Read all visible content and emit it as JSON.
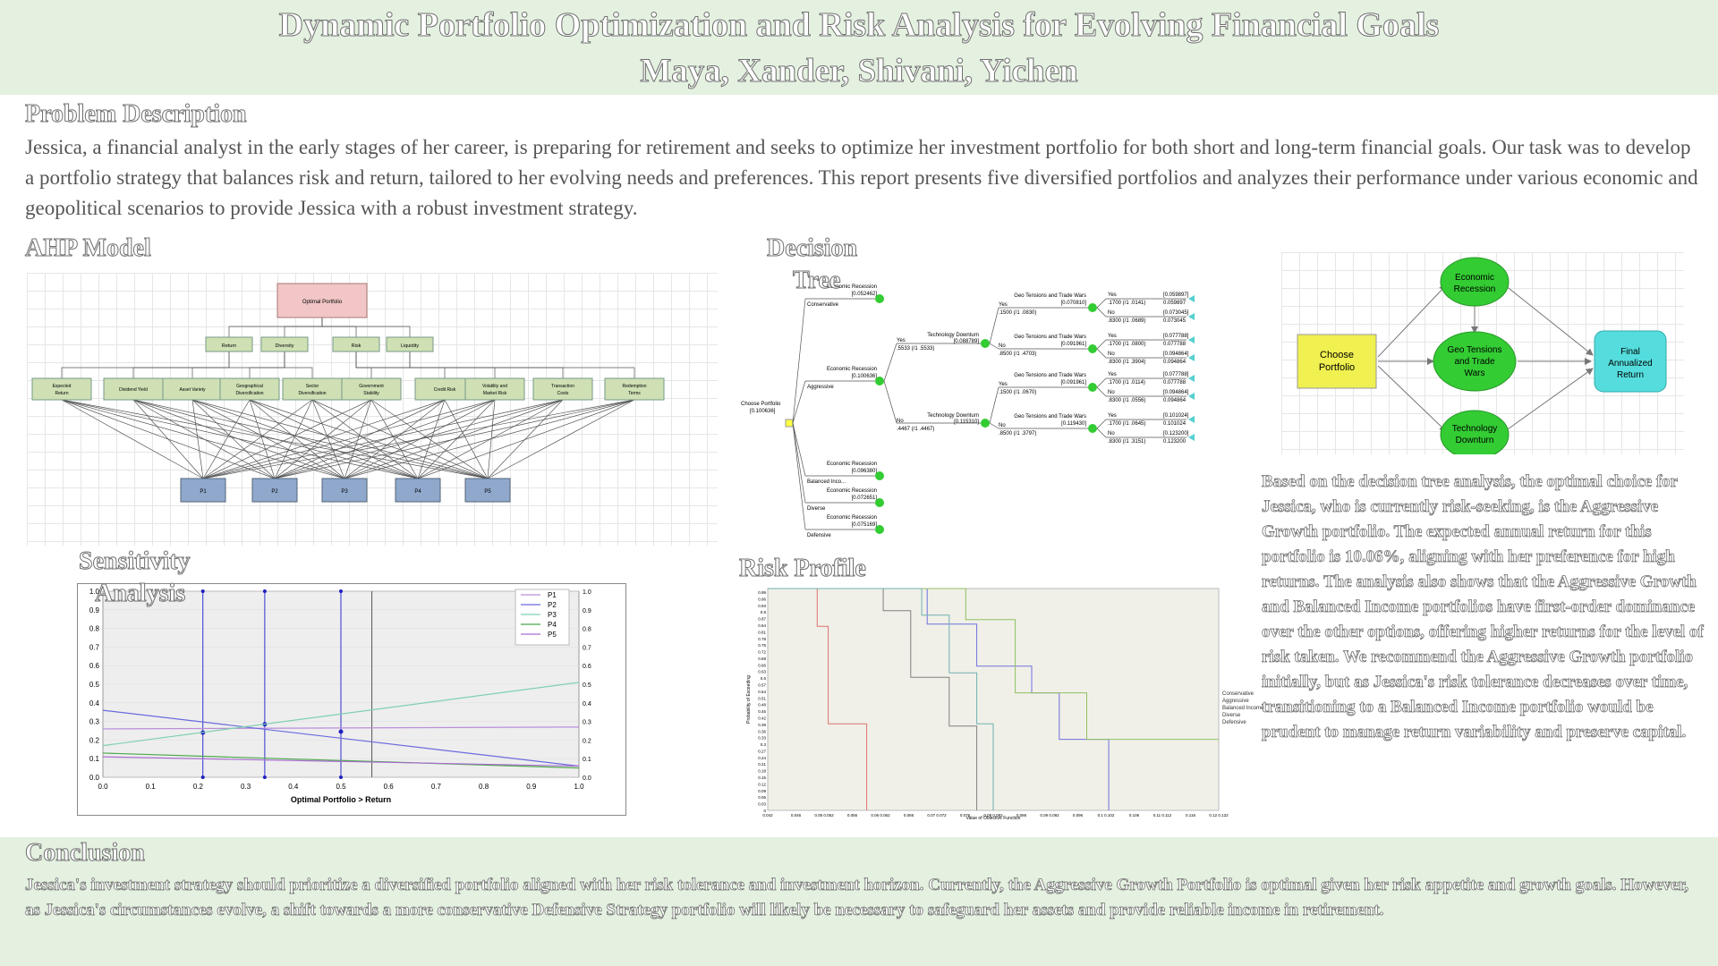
{
  "header": {
    "title": "Dynamic Portfolio Optimization and Risk Analysis for Evolving Financial Goals",
    "authors": "Maya, Xander, Shivani, Yichen"
  },
  "problem": {
    "heading": "Problem Description",
    "text": "Jessica, a financial analyst in the early stages of her career, is preparing for retirement and seeks to optimize her investment portfolio for both short and long-term financial goals. Our task was to develop a portfolio strategy that balances risk and return, tailored to her evolving needs and preferences. This report presents five diversified portfolios and analyzes their performance under various economic and geopolitical scenarios to provide Jessica with a robust investment strategy."
  },
  "ahp": {
    "heading": "AHP Model",
    "goal": "Optimal Portfolio",
    "criteria": [
      "Return",
      "Diversity",
      "Risk",
      "Liquidity"
    ],
    "subcriteria": [
      "Expected Return",
      "Dividend Yield",
      "Asset Variety",
      "Geographical Diversification",
      "Sector Diversification",
      "Government Stability",
      "Credit Risk",
      "Volatility and Market Risk",
      "Transaction Costs",
      "Redemption Terms"
    ],
    "alternatives": [
      "P1",
      "P2",
      "P3",
      "P4",
      "P5"
    ]
  },
  "decision_tree": {
    "heading_line1": "Decision",
    "heading_line2": "Tree",
    "root_label": "Choose Portfolio",
    "root_value": "[0.100636]",
    "branches": [
      {
        "name": "Conservative",
        "event": "Economic Recession",
        "value": "[0.052462]"
      },
      {
        "name": "Aggressive",
        "event": "Economic Recession",
        "value": "[0.100636]"
      },
      {
        "name": "Balanced Inco...",
        "event": "Economic Recession",
        "value": "[0.096380]"
      },
      {
        "name": "Diverse",
        "event": "Economic Recession",
        "value": "[0.072651]"
      },
      {
        "name": "Defensive",
        "event": "Economic Recession",
        "value": "[0.075169]"
      }
    ],
    "recession_yes": {
      "label": "Yes",
      "prob": ".5533 (/1 .5533)",
      "event": "Technology Downturn",
      "value": "[0.088789]"
    },
    "recession_no": {
      "label": "No",
      "prob": ".4467 (/1 .4467)",
      "event": "Technology Downturn",
      "value": "[0.115310]"
    },
    "tech_nodes": [
      {
        "yes_prob": ".1500 (/1 .0830)",
        "no_prob": ".8500 (/1 .4703)",
        "geo_yes_value": "[0.070810]",
        "geo_no_value": "[0.091961]"
      },
      {
        "yes_prob": ".1500 (/1 .0670)",
        "no_prob": ".8500 (/1 .3797)",
        "geo_yes_value": "[0.091961]",
        "geo_no_value": "[0.119430]"
      }
    ],
    "geo_event": "Geo Tensions and Trade Wars",
    "leaves": [
      {
        "label": "Yes",
        "prob": ".1700 (/1 .0141)",
        "value": "[0.059897]",
        "payoff": "0.059897"
      },
      {
        "label": "No",
        "prob": ".8300 (/1 .0689)",
        "value": "[0.073045]",
        "payoff": "0.073045"
      },
      {
        "label": "Yes",
        "prob": ".1700 (/1 .0800)",
        "value": "[0.077788]",
        "payoff": "0.077788"
      },
      {
        "label": "No",
        "prob": ".8300 (/1 .3904)",
        "value": "[0.094864]",
        "payoff": "0.094864"
      },
      {
        "label": "Yes",
        "prob": ".1700 (/1 .0114)",
        "value": "[0.077788]",
        "payoff": "0.077788"
      },
      {
        "label": "No",
        "prob": ".8300 (/1 .0556)",
        "value": "[0.094864]",
        "payoff": "0.094864"
      },
      {
        "label": "Yes",
        "prob": ".1700 (/1 .0645)",
        "value": "[0.101024]",
        "payoff": "0.101024"
      },
      {
        "label": "No",
        "prob": ".8300 (/1 .3151)",
        "value": "[0.123200]",
        "payoff": "0.123200"
      }
    ]
  },
  "influence": {
    "decision": "Choose Portfolio",
    "chance_nodes": [
      "Economic Recession",
      "Geo Tensions and Trade Wars",
      "Technology Downturn"
    ],
    "value": "Final Annualized Return"
  },
  "sensitivity": {
    "heading_line1": "Sensitivity",
    "heading_line2": "Analysis",
    "xlabel": "Optimal Portfolio > Return",
    "legend": [
      "P1",
      "P2",
      "P3",
      "P4",
      "P5"
    ],
    "ticks": [
      "0.0",
      "0.1",
      "0.2",
      "0.3",
      "0.4",
      "0.5",
      "0.6",
      "0.7",
      "0.8",
      "0.9",
      "1.0"
    ]
  },
  "risk_profile": {
    "heading": "Risk Profile",
    "xlabel": "Value of Objective Function",
    "ylabel": "Probability of Exceeding",
    "legend": [
      "Conservative",
      "Aggressive",
      "Balanced Income",
      "Diverse",
      "Defensive"
    ],
    "x_ticks": [
      "0.042",
      "0.046",
      "0.05 0.052",
      "0.056",
      "0.06 0.062",
      "0.066",
      "0.07 0.072",
      "0.076",
      "0.08 0.082",
      "0.086",
      "0.09 0.092",
      "0.096",
      "0.1 0.102",
      "0.106",
      "0.11 0.112",
      "0.116",
      "0.12 0.122"
    ],
    "y_ticks": [
      "0.99",
      "0.96",
      "0.93",
      "0.9",
      "0.87",
      "0.84",
      "0.81",
      "0.78",
      "0.75",
      "0.72",
      "0.69",
      "0.66",
      "0.63",
      "0.6",
      "0.57",
      "0.54",
      "0.51",
      "0.48",
      "0.45",
      "0.42",
      "0.39",
      "0.36",
      "0.33",
      "0.3",
      "0.27",
      "0.24",
      "0.21",
      "0.18",
      "0.15",
      "0.12",
      "0.09",
      "0.06",
      "0.03",
      "0"
    ]
  },
  "chart_data": [
    {
      "type": "line",
      "xlabel": "Optimal Portfolio > Return",
      "ylabel": "",
      "xlim": [
        0,
        1
      ],
      "ylim": [
        0,
        1
      ],
      "x": [
        0,
        1
      ],
      "series": [
        {
          "name": "P1",
          "values": [
            0.26,
            0.27
          ]
        },
        {
          "name": "P2",
          "values": [
            0.36,
            0.06
          ]
        },
        {
          "name": "P3",
          "values": [
            0.17,
            0.51
          ]
        },
        {
          "name": "P4",
          "values": [
            0.13,
            0.05
          ]
        },
        {
          "name": "P5",
          "values": [
            0.11,
            0.06
          ]
        }
      ],
      "colors": [
        "#b98fd9",
        "#6a6adf",
        "#7fd0b0",
        "#4ca84c",
        "#a96dd0"
      ],
      "crossover_points": [
        [
          0.21,
          0.24
        ],
        [
          0.34,
          0.285
        ],
        [
          0.5,
          0.245
        ]
      ],
      "current_x": 0.565
    },
    {
      "type": "line",
      "title": "",
      "xlabel": "Value of Objective Function",
      "ylabel": "Probability of Exceeding",
      "xlim": [
        0.042,
        0.124
      ],
      "ylim": [
        0,
        1
      ],
      "series": [
        {
          "name": "Conservative",
          "color": "#e07070",
          "points": [
            [
              0.042,
              1.0
            ],
            [
              0.051,
              1.0
            ],
            [
              0.051,
              0.83
            ],
            [
              0.053,
              0.83
            ],
            [
              0.053,
              0.39
            ],
            [
              0.06,
              0.39
            ],
            [
              0.06,
              0
            ]
          ]
        },
        {
          "name": "Aggressive",
          "color": "#7070e0",
          "points": [
            [
              0.042,
              1.0
            ],
            [
              0.071,
              1.0
            ],
            [
              0.071,
              0.84
            ],
            [
              0.08,
              0.84
            ],
            [
              0.08,
              0.65
            ],
            [
              0.09,
              0.65
            ],
            [
              0.09,
              0.53
            ],
            [
              0.095,
              0.53
            ],
            [
              0.095,
              0.32
            ],
            [
              0.104,
              0.32
            ],
            [
              0.104,
              0
            ]
          ]
        },
        {
          "name": "Balanced Income",
          "color": "#90c060",
          "points": [
            [
              0.042,
              1.0
            ],
            [
              0.078,
              1.0
            ],
            [
              0.078,
              0.86
            ],
            [
              0.087,
              0.86
            ],
            [
              0.087,
              0.53
            ],
            [
              0.1,
              0.53
            ],
            [
              0.1,
              0.32
            ],
            [
              0.124,
              0.32
            ]
          ]
        },
        {
          "name": "Diverse",
          "color": "#808080",
          "points": [
            [
              0.042,
              1.0
            ],
            [
              0.063,
              1.0
            ],
            [
              0.063,
              0.9
            ],
            [
              0.068,
              0.9
            ],
            [
              0.068,
              0.6
            ],
            [
              0.075,
              0.6
            ],
            [
              0.075,
              0.38
            ],
            [
              0.08,
              0.38
            ],
            [
              0.08,
              0
            ]
          ]
        },
        {
          "name": "Defensive",
          "color": "#70b0b0",
          "points": [
            [
              0.042,
              1.0
            ],
            [
              0.07,
              1.0
            ],
            [
              0.07,
              0.88
            ],
            [
              0.075,
              0.88
            ],
            [
              0.075,
              0.62
            ],
            [
              0.08,
              0.62
            ],
            [
              0.08,
              0.39
            ],
            [
              0.083,
              0.39
            ],
            [
              0.083,
              0
            ]
          ]
        }
      ]
    }
  ],
  "analysis_text": "Based on the decision tree analysis, the optimal choice for Jessica, who is currently risk-seeking, is the Aggressive Growth portfolio. The expected annual return for this portfolio is 10.06%, aligning with her preference for high returns. The analysis also shows that the Aggressive Growth and Balanced Income portfolios have first-order dominance over the other options, offering higher returns for the level of risk taken. We recommend the Aggressive Growth portfolio initially, but as Jessica's risk tolerance decreases over time, transitioning to a Balanced Income portfolio would be prudent to manage return variability and preserve capital.",
  "conclusion": {
    "heading": "Conclusion",
    "text": "Jessica's investment strategy should prioritize a diversified portfolio aligned with her risk tolerance and investment horizon. Currently, the Aggressive Growth Portfolio is optimal given her risk appetite and growth goals. However, as Jessica's circumstances evolve, a shift towards a more conservative Defensive Strategy portfolio will likely be necessary to safeguard her assets and provide reliable income in retirement."
  }
}
